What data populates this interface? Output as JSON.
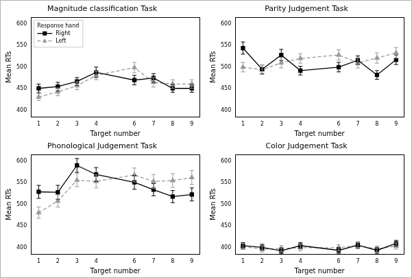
{
  "chart_data": [
    {
      "type": "line",
      "title": "Magnitude classification Task",
      "x_label": "Target number",
      "y_label": "Mean RTs",
      "x": [
        1,
        2,
        3,
        4,
        6,
        7,
        8,
        9
      ],
      "xlim": [
        0.6,
        9.4
      ],
      "xticks": [
        1,
        2,
        3,
        4,
        6,
        7,
        8,
        9
      ],
      "ylim": [
        385,
        615
      ],
      "yticks": [
        400,
        450,
        500,
        550,
        600
      ],
      "grid": false,
      "legend": "upper left",
      "legend_title": "Response hand",
      "series": [
        {
          "name": "Right",
          "color": "#000000",
          "marker": "square",
          "line_style": "solid",
          "values": [
            451,
            455,
            467,
            488,
            470,
            475,
            451,
            451
          ],
          "errors": [
            10,
            10,
            9,
            12,
            11,
            10,
            9,
            9
          ]
        },
        {
          "name": "Left",
          "color": "#999999",
          "marker": "triangle",
          "line_style": "dashed",
          "values": [
            431,
            443,
            457,
            481,
            499,
            465,
            461,
            461
          ],
          "errors": [
            8,
            9,
            9,
            10,
            12,
            11,
            10,
            10
          ]
        }
      ]
    },
    {
      "type": "line",
      "title": "Parity Judgement Task",
      "x_label": "Target number",
      "y_label": "Mean RTs",
      "x": [
        1,
        2,
        3,
        4,
        6,
        7,
        8,
        9
      ],
      "xlim": [
        0.6,
        9.4
      ],
      "xticks": [
        1,
        2,
        3,
        4,
        6,
        7,
        8,
        9
      ],
      "ylim": [
        385,
        615
      ],
      "yticks": [
        400,
        450,
        500,
        550,
        600
      ],
      "grid": false,
      "legend": "none",
      "series": [
        {
          "name": "Right",
          "color": "#000000",
          "marker": "square",
          "line_style": "solid",
          "values": [
            544,
            495,
            528,
            492,
            500,
            516,
            482,
            517
          ],
          "errors": [
            14,
            10,
            13,
            10,
            11,
            10,
            10,
            11
          ]
        },
        {
          "name": "Left",
          "color": "#999999",
          "marker": "triangle",
          "line_style": "dashed",
          "values": [
            500,
            494,
            510,
            520,
            528,
            510,
            521,
            533
          ],
          "errors": [
            11,
            11,
            12,
            11,
            12,
            12,
            12,
            12
          ]
        }
      ]
    },
    {
      "type": "line",
      "title": "Phonological Judgement Task",
      "x_label": "Target number",
      "y_label": "Mean RTs",
      "x": [
        1,
        2,
        3,
        4,
        6,
        7,
        8,
        9
      ],
      "xlim": [
        0.6,
        9.4
      ],
      "xticks": [
        1,
        2,
        3,
        4,
        6,
        7,
        8,
        9
      ],
      "ylim": [
        385,
        615
      ],
      "yticks": [
        400,
        450,
        500,
        550,
        600
      ],
      "grid": false,
      "legend": "none",
      "series": [
        {
          "name": "Right",
          "color": "#000000",
          "marker": "square",
          "line_style": "solid",
          "values": [
            529,
            528,
            590,
            569,
            551,
            534,
            518,
            523
          ],
          "errors": [
            15,
            16,
            16,
            16,
            16,
            14,
            14,
            15
          ]
        },
        {
          "name": "Left",
          "color": "#999999",
          "marker": "triangle",
          "line_style": "dashed",
          "values": [
            481,
            508,
            556,
            553,
            568,
            553,
            555,
            562
          ],
          "errors": [
            13,
            14,
            15,
            15,
            16,
            16,
            16,
            16
          ]
        }
      ]
    },
    {
      "type": "line",
      "title": "Color Judgement Task",
      "x_label": "Target number",
      "y_label": "Mean RTs",
      "x": [
        1,
        2,
        3,
        4,
        6,
        7,
        8,
        9
      ],
      "xlim": [
        0.6,
        9.4
      ],
      "xticks": [
        1,
        2,
        3,
        4,
        6,
        7,
        8,
        9
      ],
      "ylim": [
        385,
        615
      ],
      "yticks": [
        400,
        450,
        500,
        550,
        600
      ],
      "grid": false,
      "legend": "none",
      "series": [
        {
          "name": "Right",
          "color": "#000000",
          "marker": "square",
          "line_style": "solid",
          "values": [
            405,
            401,
            393,
            405,
            394,
            406,
            394,
            410
          ],
          "errors": [
            7,
            7,
            7,
            7,
            7,
            7,
            7,
            7
          ]
        },
        {
          "name": "Left",
          "color": "#999999",
          "marker": "triangle",
          "line_style": "dashed",
          "values": [
            403,
            397,
            398,
            400,
            400,
            405,
            397,
            404
          ],
          "errors": [
            7,
            7,
            7,
            7,
            7,
            7,
            7,
            7
          ]
        }
      ]
    }
  ]
}
